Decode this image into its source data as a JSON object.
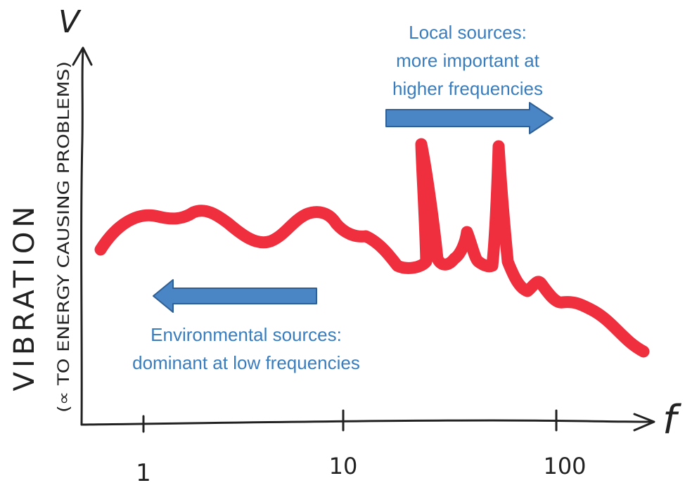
{
  "axes": {
    "y_symbol": "V",
    "x_symbol": "f",
    "y_label": "VIBRATION",
    "y_sublabel": "(∝ TO ENERGY CAUSING PROBLEMS)",
    "x_ticks": [
      "1",
      "10",
      "100"
    ]
  },
  "local_sources": {
    "line1": "Local sources:",
    "line2": "more important at",
    "line3": "higher frequencies"
  },
  "environmental_sources": {
    "line1": "Environmental sources:",
    "line2": "dominant at low frequencies"
  },
  "colors": {
    "curve": "#EE1C2E",
    "arrow_fill": "#4A86C6",
    "arrow_stroke": "#2F5F94",
    "text_blue": "#3A7DBF",
    "ink": "#222222"
  }
}
